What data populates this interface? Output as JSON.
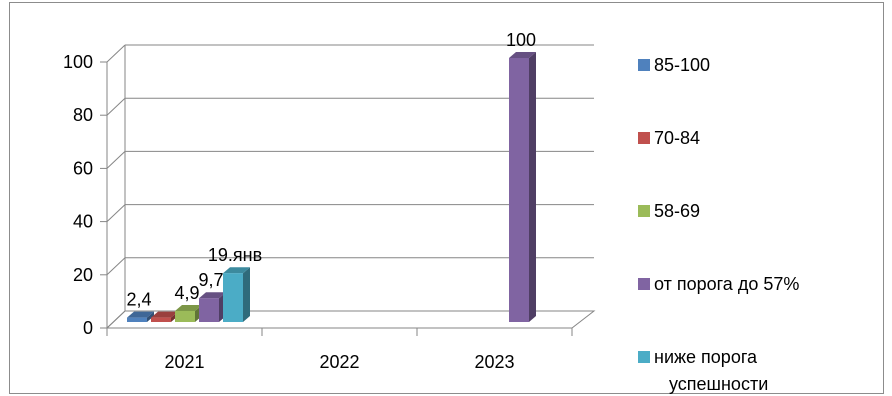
{
  "chart_data": {
    "type": "bar",
    "categories": [
      "2021",
      "2022",
      "2023"
    ],
    "ylim": [
      0,
      100
    ],
    "yticks": [
      0,
      20,
      40,
      60,
      80,
      100
    ],
    "grid": true,
    "legend": "right",
    "series": [
      {
        "name": "85-100",
        "color": "#4f81bd",
        "values": [
          2.4,
          0,
          0
        ],
        "labels": [
          "2,4",
          "",
          ""
        ]
      },
      {
        "name": "70-84",
        "color": "#c0504d",
        "values": [
          2.4,
          0,
          0
        ],
        "labels": [
          "",
          "",
          ""
        ]
      },
      {
        "name": "58-69",
        "color": "#9bbb59",
        "values": [
          4.9,
          0,
          0
        ],
        "labels": [
          "4,9",
          "",
          ""
        ]
      },
      {
        "name": "от порога до 57%",
        "color": "#8064a2",
        "values": [
          9.7,
          0,
          100
        ],
        "labels": [
          "9,7",
          "",
          "100"
        ]
      },
      {
        "name": "ниже порога успешности",
        "color": "#4bacc6",
        "values": [
          19.1,
          0,
          0
        ],
        "labels": [
          "19.янв",
          "",
          ""
        ]
      }
    ]
  }
}
